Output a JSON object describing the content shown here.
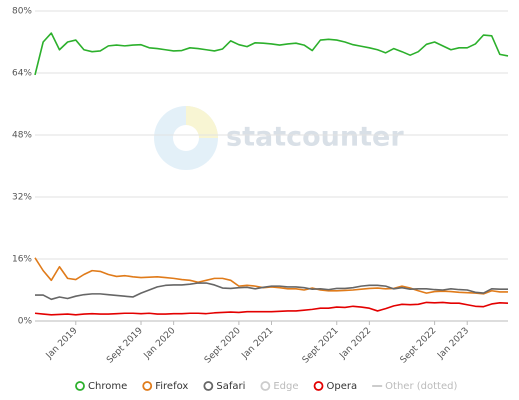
{
  "chart_data": {
    "type": "line",
    "watermark": "statcounter",
    "categories": [
      null,
      null,
      null,
      null,
      null,
      "Jan 2019",
      null,
      null,
      null,
      null,
      null,
      null,
      null,
      "Sept 2019",
      null,
      null,
      null,
      "Jan 2020",
      null,
      null,
      null,
      null,
      null,
      null,
      null,
      "Sept 2020",
      null,
      null,
      null,
      "Jan 2021",
      null,
      null,
      null,
      null,
      null,
      null,
      null,
      "Sept 2021",
      null,
      null,
      null,
      "Jan 2022",
      null,
      null,
      null,
      null,
      null,
      null,
      null,
      "Sept 2022",
      null,
      null,
      null,
      "Jan 2023",
      null,
      null,
      null,
      null,
      null
    ],
    "ylim": [
      0,
      80
    ],
    "yticks": [
      {
        "value": 0,
        "label": "0%"
      },
      {
        "value": 16,
        "label": "16%"
      },
      {
        "value": 32,
        "label": "32%"
      },
      {
        "value": 48,
        "label": "48%"
      },
      {
        "value": 64,
        "label": "64%"
      },
      {
        "value": 80,
        "label": "80%"
      }
    ],
    "grid": true,
    "legend": "bottom",
    "series": [
      {
        "name": "Chrome",
        "color": "#2cb02c",
        "values": [
          63.5,
          72,
          74.3,
          70,
          72,
          72.5,
          70,
          69.5,
          69.7,
          71,
          71.2,
          71,
          71.2,
          71.3,
          70.5,
          70.3,
          70,
          69.7,
          69.8,
          70.5,
          70.3,
          70,
          69.7,
          70.2,
          72.3,
          71.3,
          70.8,
          71.8,
          71.7,
          71.5,
          71.2,
          71.5,
          71.7,
          71.2,
          69.8,
          72.5,
          72.7,
          72.5,
          72,
          71.3,
          70.9,
          70.5,
          70,
          69.2,
          70.3,
          69.5,
          68.6,
          69.5,
          71.4,
          72,
          71,
          70,
          70.5,
          70.5,
          71.5,
          73.8,
          73.6,
          68.8,
          68.4
        ]
      },
      {
        "name": "Firefox",
        "color": "#e07b1a",
        "values": [
          16.3,
          13,
          10.5,
          14,
          11,
          10.7,
          12,
          13,
          12.8,
          12,
          11.5,
          11.7,
          11.4,
          11.2,
          11.3,
          11.4,
          11.2,
          11,
          10.7,
          10.5,
          10,
          10.5,
          11,
          11,
          10.5,
          9,
          9.2,
          9,
          8.6,
          8.8,
          8.6,
          8.3,
          8.3,
          8,
          8.5,
          8,
          7.8,
          7.8,
          7.9,
          8,
          8.2,
          8.4,
          8.5,
          8.3,
          8.4,
          9,
          8.5,
          7.8,
          7.2,
          7.6,
          7.7,
          7.6,
          7.4,
          7.3,
          7.2,
          7.0,
          7.8,
          7.5,
          7.5
        ]
      },
      {
        "name": "Safari",
        "color": "#666666",
        "values": [
          6.7,
          6.7,
          5.6,
          6.2,
          5.8,
          6.4,
          6.8,
          7,
          7,
          6.8,
          6.6,
          6.4,
          6.2,
          7.2,
          8,
          8.8,
          9.2,
          9.3,
          9.3,
          9.5,
          9.8,
          9.8,
          9.3,
          8.5,
          8.4,
          8.6,
          8.7,
          8.3,
          8.7,
          9,
          9,
          8.8,
          8.8,
          8.6,
          8.2,
          8.3,
          8.1,
          8.4,
          8.4,
          8.6,
          9,
          9.2,
          9.2,
          9,
          8.3,
          8.6,
          8.2,
          8.3,
          8.3,
          8.1,
          8,
          8.3,
          8.1,
          8,
          7.4,
          7.2,
          8.3,
          8.2,
          8.2
        ]
      },
      {
        "name": "Edge",
        "color": "#cccccc",
        "visible": false
      },
      {
        "name": "Opera",
        "color": "#e30000",
        "values": [
          2,
          1.8,
          1.6,
          1.7,
          1.8,
          1.6,
          1.8,
          1.9,
          1.8,
          1.8,
          1.9,
          2,
          2,
          1.9,
          2,
          1.8,
          1.8,
          1.9,
          1.9,
          2,
          2,
          1.9,
          2.1,
          2.2,
          2.3,
          2.2,
          2.4,
          2.4,
          2.4,
          2.4,
          2.5,
          2.6,
          2.6,
          2.8,
          3,
          3.3,
          3.3,
          3.6,
          3.5,
          3.8,
          3.6,
          3.3,
          2.6,
          3.2,
          3.9,
          4.3,
          4.2,
          4.3,
          4.8,
          4.7,
          4.8,
          4.6,
          4.6,
          4.2,
          3.8,
          3.7,
          4.4,
          4.7,
          4.6
        ]
      },
      {
        "name": "Other (dotted)",
        "color": "#cccccc",
        "visible": false,
        "legend_symbol": "line"
      }
    ]
  }
}
